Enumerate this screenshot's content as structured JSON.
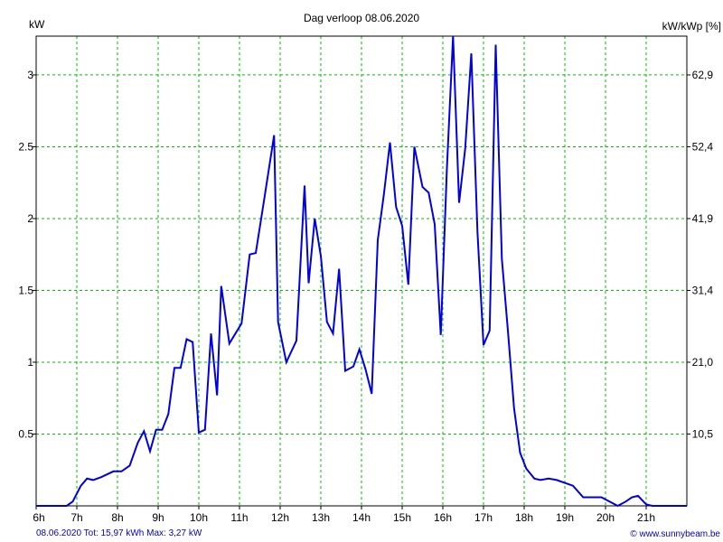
{
  "chart_data": {
    "type": "line",
    "title": "Dag  verloop 08.06.2020",
    "ylabel_left": "kW",
    "ylabel_right": "kW/kWp [%]",
    "x_ticks": [
      "6h",
      "7h",
      "8h",
      "9h",
      "10h",
      "11h",
      "12h",
      "13h",
      "14h",
      "15h",
      "16h",
      "17h",
      "18h",
      "19h",
      "20h",
      "21h"
    ],
    "y_ticks_left": [
      {
        "value": 0.5,
        "label": "0.5"
      },
      {
        "value": 1.0,
        "label": "1"
      },
      {
        "value": 1.5,
        "label": "1.5"
      },
      {
        "value": 2.0,
        "label": "2"
      },
      {
        "value": 2.5,
        "label": "2.5"
      },
      {
        "value": 3.0,
        "label": "3"
      }
    ],
    "y_ticks_right": [
      "10,5",
      "21,0",
      "31,4",
      "41,9",
      "52,4",
      "62,9"
    ],
    "xlim": [
      6,
      22
    ],
    "ylim": [
      0,
      3.27
    ],
    "grid": true,
    "series": [
      {
        "color": "#0000e0",
        "x": [
          6.0,
          6.5,
          6.75,
          6.9,
          7.1,
          7.25,
          7.4,
          7.6,
          7.9,
          8.1,
          8.3,
          8.5,
          8.65,
          8.8,
          8.95,
          9.1,
          9.25,
          9.4,
          9.55,
          9.7,
          9.85,
          10.0,
          10.15,
          10.3,
          10.45,
          10.55,
          10.75,
          11.05,
          11.25,
          11.4,
          11.6,
          11.85,
          11.95,
          12.15,
          12.4,
          12.6,
          12.7,
          12.85,
          13.0,
          13.15,
          13.3,
          13.45,
          13.6,
          13.8,
          13.95,
          14.1,
          14.25,
          14.4,
          14.55,
          14.7,
          14.85,
          15.0,
          15.15,
          15.3,
          15.5,
          15.65,
          15.8,
          15.95,
          16.1,
          16.25,
          16.4,
          16.55,
          16.7,
          16.85,
          17.0,
          17.15,
          17.3,
          17.45,
          17.6,
          17.75,
          17.9,
          18.05,
          18.25,
          18.4,
          18.6,
          18.8,
          19.0,
          19.2,
          19.45,
          19.65,
          19.9,
          20.1,
          20.3,
          20.5,
          20.65,
          20.8,
          21.0,
          21.15,
          21.3,
          21.45,
          21.6,
          21.75,
          22.0
        ],
        "y": [
          0,
          0,
          0,
          0.03,
          0.14,
          0.19,
          0.18,
          0.2,
          0.24,
          0.24,
          0.28,
          0.44,
          0.52,
          0.38,
          0.53,
          0.53,
          0.64,
          0.96,
          0.96,
          1.16,
          1.14,
          0.51,
          0.53,
          1.2,
          0.77,
          1.53,
          1.13,
          1.27,
          1.75,
          1.76,
          2.12,
          2.58,
          1.28,
          1.0,
          1.15,
          2.23,
          1.55,
          2.0,
          1.74,
          1.28,
          1.2,
          1.65,
          0.94,
          0.97,
          1.09,
          0.95,
          0.78,
          1.85,
          2.17,
          2.53,
          2.08,
          1.95,
          1.54,
          2.5,
          2.22,
          2.18,
          1.96,
          1.19,
          2.35,
          3.27,
          2.11,
          2.49,
          3.15,
          1.91,
          1.12,
          1.22,
          3.21,
          1.72,
          1.22,
          0.68,
          0.37,
          0.26,
          0.19,
          0.18,
          0.19,
          0.18,
          0.16,
          0.14,
          0.06,
          0.06,
          0.06,
          0.03,
          0,
          0.03,
          0.06,
          0.07,
          0.01,
          0,
          0,
          0,
          0,
          0,
          0
        ]
      }
    ]
  },
  "footer": {
    "left": "08.06.2020 Tot: 15,97 kWh Max: 3,27 kW",
    "right": "© www.sunnybeam.be"
  },
  "colors": {
    "line": "#0000e0",
    "grid": "#00c000",
    "axis": "#000000",
    "footer_text": "#0000c0"
  }
}
